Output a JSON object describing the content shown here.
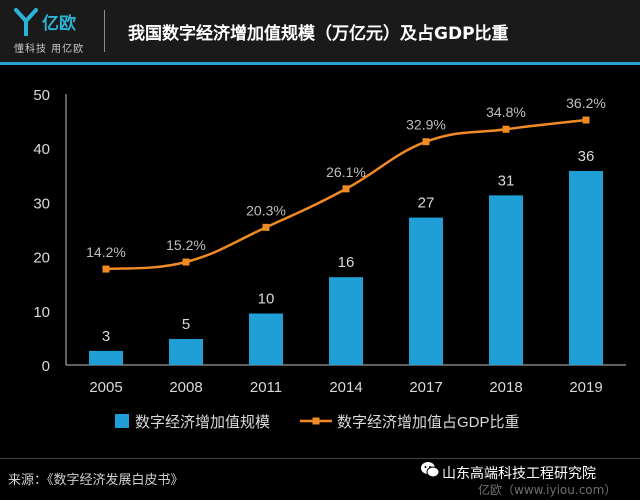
{
  "header": {
    "logo_text": "亿欧",
    "logo_tagline": "懂科技 用亿欧",
    "title": "我国数字经济增加值规模（万亿元）及占GDP比重"
  },
  "footer": {
    "source": "来源：《数字经济发展白皮书》",
    "institute": "山东高端科技工程研究院",
    "watermark": "亿欧（www.iyiou.com）"
  },
  "colors": {
    "bar": "#1f9fd6",
    "line": "#f08a24",
    "header_bg": "#1a1a1a",
    "accent": "#2aa0d0",
    "text": "#d9d9d9"
  },
  "chart_data": {
    "type": "bar",
    "categories": [
      "2005",
      "2008",
      "2011",
      "2014",
      "2017",
      "2018",
      "2019"
    ],
    "ylim": [
      0,
      50
    ],
    "yticks": [
      0,
      10,
      20,
      30,
      40,
      50
    ],
    "grid": false,
    "legend_position": "bottom",
    "series": [
      {
        "name": "数字经济增加值规模",
        "type": "bar",
        "values": [
          2.6,
          4.8,
          9.5,
          16.2,
          27.2,
          31.3,
          35.8
        ],
        "labels": [
          "3",
          "5",
          "10",
          "16",
          "27",
          "31",
          "36"
        ]
      },
      {
        "name": "数字经济增加值占GDP比重",
        "type": "line",
        "values": [
          17.7,
          19.0,
          25.4,
          32.5,
          41.2,
          43.5,
          45.2
        ],
        "labels": [
          "14.2%",
          "15.2%",
          "20.3%",
          "26.1%",
          "32.9%",
          "34.8%",
          "36.2%"
        ]
      }
    ]
  }
}
